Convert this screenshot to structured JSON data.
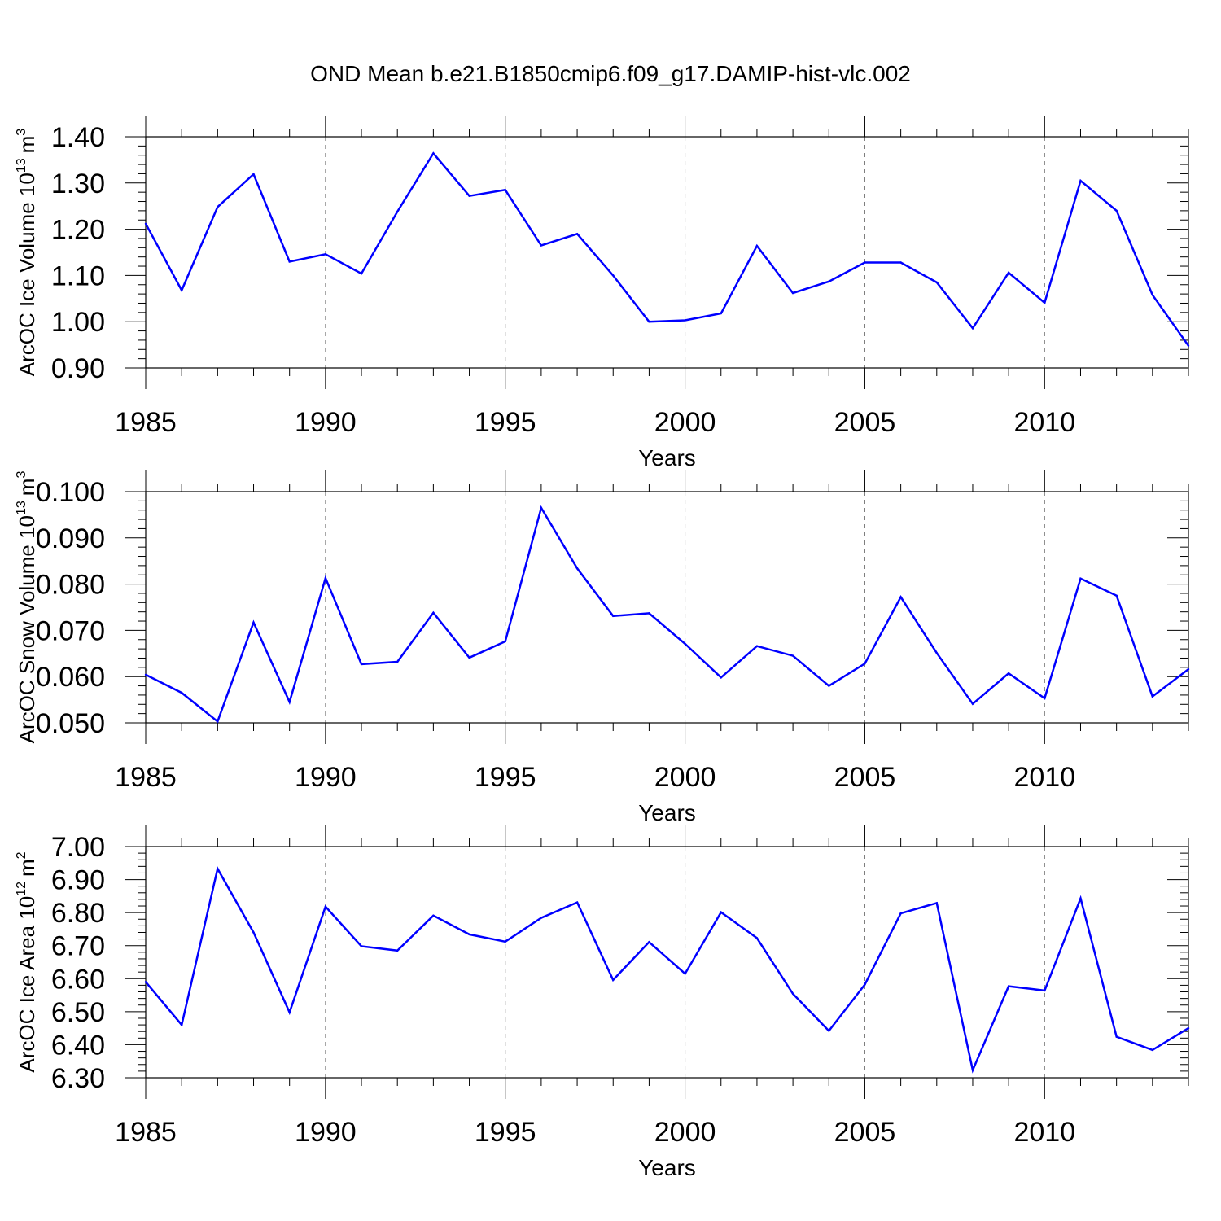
{
  "title": "OND Mean b.e21.B1850cmip6.f09_g17.DAMIP-hist-vlc.002",
  "chart_data": [
    {
      "type": "line",
      "name": "ice-volume",
      "title": "OND Mean b.e21.B1850cmip6.f09_g17.DAMIP-hist-vlc.002",
      "xlabel": "Years",
      "ylabel": "ArcOC Ice Volume 10",
      "ylabel_exp": "13",
      "ylabel_unit": "m",
      "ylabel_unit_exp": "3",
      "xlim": [
        1985,
        2014
      ],
      "ylim": [
        0.9,
        1.4
      ],
      "x_ticks": [
        "1985",
        "1990",
        "1995",
        "2000",
        "2005",
        "2010"
      ],
      "y_ticks": [
        "0.90",
        "1.00",
        "1.10",
        "1.20",
        "1.30",
        "1.40"
      ],
      "grid": "dashed vertical at major x ticks",
      "color": "#0000ff",
      "x": [
        1985,
        1986,
        1987,
        1988,
        1989,
        1990,
        1991,
        1992,
        1993,
        1994,
        1995,
        1996,
        1997,
        1998,
        1999,
        2000,
        2001,
        2002,
        2003,
        2004,
        2005,
        2006,
        2007,
        2008,
        2009,
        2010,
        2011,
        2012,
        2013,
        2014
      ],
      "values": [
        1.212,
        1.068,
        1.248,
        1.319,
        1.13,
        1.146,
        1.104,
        1.238,
        1.364,
        1.272,
        1.285,
        1.165,
        1.19,
        1.1,
        1.0,
        1.003,
        1.018,
        1.164,
        1.062,
        1.087,
        1.128,
        1.128,
        1.085,
        0.986,
        1.106,
        1.041,
        1.305,
        1.24,
        1.058,
        0.948
      ]
    },
    {
      "type": "line",
      "name": "snow-volume",
      "xlabel": "Years",
      "ylabel": "ArcOC Snow Volume 10",
      "ylabel_exp": "13",
      "ylabel_unit": "m",
      "ylabel_unit_exp": "3",
      "xlim": [
        1985,
        2014
      ],
      "ylim": [
        0.05,
        0.1
      ],
      "x_ticks": [
        "1985",
        "1990",
        "1995",
        "2000",
        "2005",
        "2010"
      ],
      "y_ticks": [
        "0.050",
        "0.060",
        "0.070",
        "0.080",
        "0.090",
        "0.100"
      ],
      "grid": "dashed vertical at major x ticks",
      "color": "#0000ff",
      "x": [
        1985,
        1986,
        1987,
        1988,
        1989,
        1990,
        1991,
        1992,
        1993,
        1994,
        1995,
        1996,
        1997,
        1998,
        1999,
        2000,
        2001,
        2002,
        2003,
        2004,
        2005,
        2006,
        2007,
        2008,
        2009,
        2010,
        2011,
        2012,
        2013,
        2014
      ],
      "values": [
        0.0604,
        0.0565,
        0.0503,
        0.0717,
        0.0545,
        0.0813,
        0.0627,
        0.0632,
        0.0738,
        0.0641,
        0.0676,
        0.0965,
        0.0834,
        0.0731,
        0.0737,
        0.0671,
        0.0598,
        0.0666,
        0.0645,
        0.058,
        0.0628,
        0.0772,
        0.0651,
        0.0541,
        0.0607,
        0.0553,
        0.0812,
        0.0775,
        0.0557,
        0.0616
      ]
    },
    {
      "type": "line",
      "name": "ice-area",
      "xlabel": "Years",
      "ylabel": "ArcOC Ice Area 10",
      "ylabel_exp": "12",
      "ylabel_unit": "m",
      "ylabel_unit_exp": "2",
      "xlim": [
        1985,
        2014
      ],
      "ylim": [
        6.3,
        7.0
      ],
      "x_ticks": [
        "1985",
        "1990",
        "1995",
        "2000",
        "2005",
        "2010"
      ],
      "y_ticks": [
        "6.30",
        "6.40",
        "6.50",
        "6.60",
        "6.70",
        "6.80",
        "6.90",
        "7.00"
      ],
      "grid": "dashed vertical at major x ticks",
      "color": "#0000ff",
      "x": [
        1985,
        1986,
        1987,
        1988,
        1989,
        1990,
        1991,
        1992,
        1993,
        1994,
        1995,
        1996,
        1997,
        1998,
        1999,
        2000,
        2001,
        2002,
        2003,
        2004,
        2005,
        2006,
        2007,
        2008,
        2009,
        2010,
        2011,
        2012,
        2013,
        2014
      ],
      "values": [
        6.59,
        6.46,
        6.933,
        6.74,
        6.498,
        6.818,
        6.698,
        6.685,
        6.791,
        6.734,
        6.712,
        6.784,
        6.831,
        6.596,
        6.711,
        6.615,
        6.801,
        6.723,
        6.554,
        6.442,
        6.582,
        6.798,
        6.829,
        6.323,
        6.577,
        6.564,
        6.843,
        6.424,
        6.384,
        6.45
      ]
    }
  ]
}
